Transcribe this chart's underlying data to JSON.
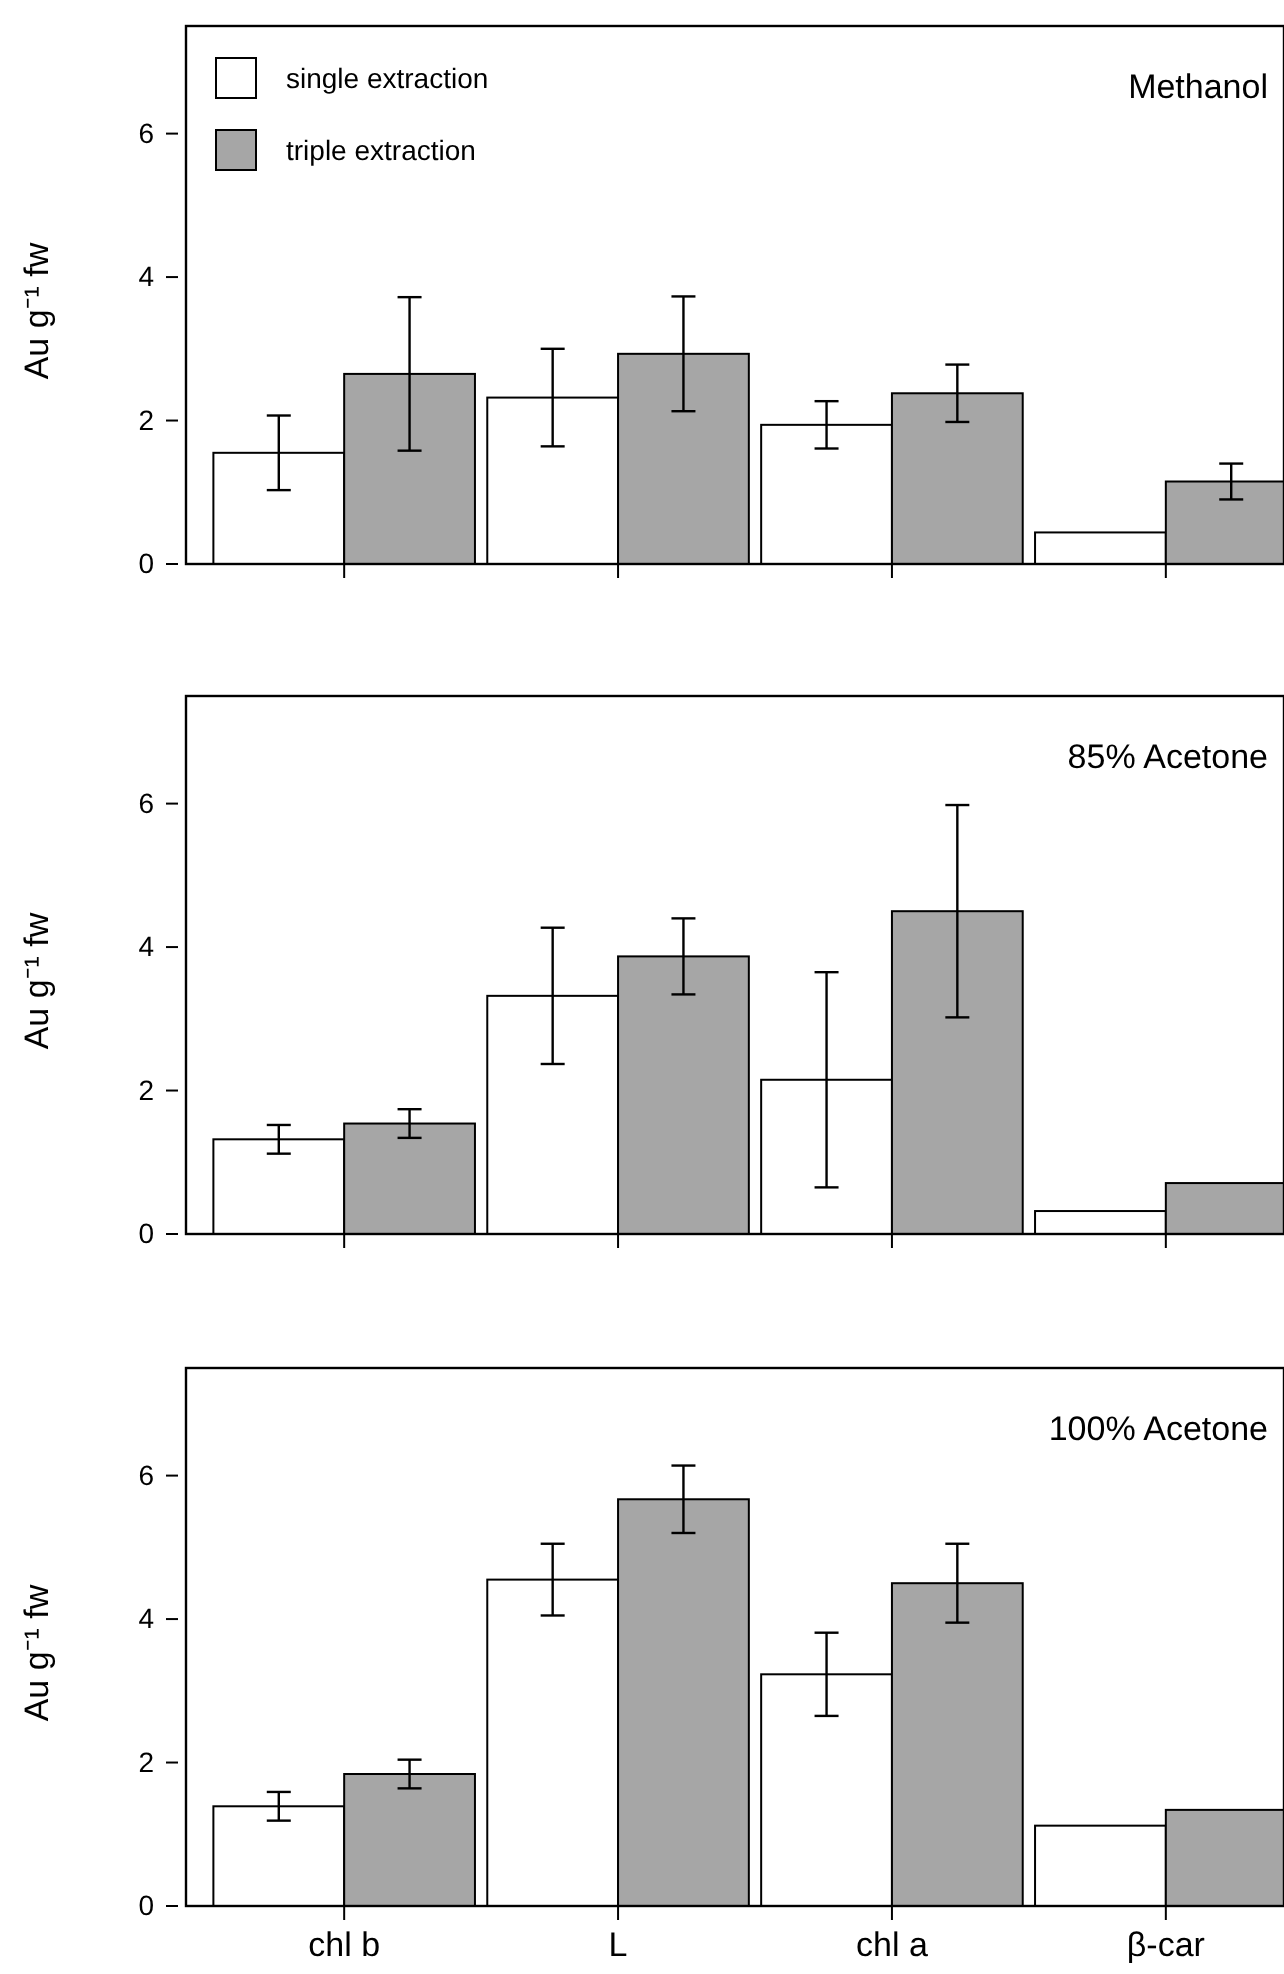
{
  "chart_data": [
    {
      "type": "bar",
      "title": "Methanol",
      "ylabel": "Au g⁻¹ fw",
      "categories": [
        null,
        null,
        null,
        null
      ],
      "ylim": [
        0,
        7.5
      ],
      "yticks": [
        0,
        2,
        4,
        6
      ],
      "legend": "top left",
      "tick_labels": "y",
      "series": [
        {
          "name": "single extraction",
          "color": "#ffffff",
          "values": [
            1.55,
            2.32,
            1.94,
            0.44
          ],
          "errors": [
            0.52,
            0.68,
            0.33,
            null
          ]
        },
        {
          "name": "triple extraction",
          "color": "#a6a6a6",
          "values": [
            2.65,
            2.93,
            2.38,
            1.15
          ],
          "errors": [
            1.07,
            0.8,
            0.4,
            0.25
          ]
        }
      ]
    },
    {
      "type": "bar",
      "title": "85% Acetone",
      "ylabel": "Au g⁻¹ fw",
      "categories": [
        null,
        null,
        null,
        null
      ],
      "ylim": [
        0,
        7.5
      ],
      "yticks": [
        0,
        2,
        4,
        6
      ],
      "tick_labels": "y",
      "series": [
        {
          "color": "#ffffff",
          "values": [
            1.32,
            3.32,
            2.15,
            0.32
          ],
          "errors": [
            0.2,
            0.95,
            1.5,
            null
          ]
        },
        {
          "color": "#a6a6a6",
          "values": [
            1.54,
            3.87,
            4.5,
            0.71
          ],
          "errors": [
            0.2,
            0.53,
            1.48,
            null
          ]
        }
      ]
    },
    {
      "type": "bar",
      "title": "100% Acetone",
      "ylabel": "Au g⁻¹ fw",
      "categories": [
        "chl b",
        "L",
        "chl a",
        "β-car"
      ],
      "ylim": [
        0,
        7.5
      ],
      "yticks": [
        0,
        2,
        4,
        6
      ],
      "series": [
        {
          "color": "#ffffff",
          "values": [
            1.39,
            4.55,
            3.23,
            1.12
          ],
          "errors": [
            0.2,
            0.5,
            0.58,
            null
          ]
        },
        {
          "color": "#a6a6a6",
          "values": [
            1.84,
            5.67,
            4.5,
            1.34
          ],
          "errors": [
            0.2,
            0.47,
            0.55,
            null
          ]
        }
      ]
    }
  ]
}
